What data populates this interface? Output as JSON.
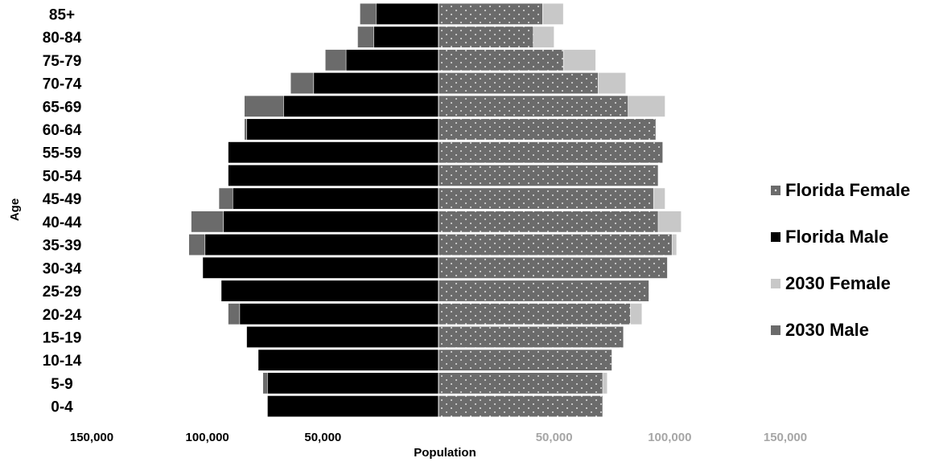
{
  "chart_data": {
    "type": "bar",
    "orientation": "horizontal",
    "xlabel": "Population",
    "ylabel": "Age",
    "xlim": [
      -150000,
      150000
    ],
    "x_ticks": [
      {
        "value": -150000,
        "label": "150,000"
      },
      {
        "value": -100000,
        "label": "100,000"
      },
      {
        "value": -50000,
        "label": "50,000"
      },
      {
        "value": 50000,
        "label": "50,000"
      },
      {
        "value": 100000,
        "label": "100,000"
      },
      {
        "value": 150000,
        "label": "150,000"
      }
    ],
    "grid": false,
    "legend_position": "right",
    "categories": [
      "0-4",
      "5-9",
      "10-14",
      "15-19",
      "20-24",
      "25-29",
      "30-34",
      "35-39",
      "40-44",
      "45-49",
      "50-54",
      "55-59",
      "60-64",
      "65-69",
      "70-74",
      "75-79",
      "80-84",
      "85+"
    ],
    "series": [
      {
        "name": "Florida Female",
        "color": "#6b6b6b",
        "pattern": "dots",
        "values": [
          71000,
          71000,
          75000,
          80000,
          83000,
          91000,
          99000,
          101000,
          95000,
          93000,
          95000,
          97000,
          94000,
          82000,
          69000,
          54000,
          41000,
          45000
        ]
      },
      {
        "name": "Florida Male",
        "color": "#000000",
        "values": [
          74000,
          74000,
          78000,
          83000,
          86000,
          94000,
          102000,
          101000,
          93000,
          89000,
          91000,
          91000,
          83000,
          67000,
          54000,
          40000,
          28000,
          27000
        ]
      },
      {
        "name": "2030 Female",
        "color": "#c8c8c8",
        "values": [
          71000,
          73000,
          75000,
          80000,
          88000,
          91000,
          99000,
          103000,
          105000,
          98000,
          95000,
          97000,
          94000,
          98000,
          81000,
          68000,
          50000,
          54000
        ]
      },
      {
        "name": "2030 Male",
        "color": "#6b6b6b",
        "values": [
          74000,
          76000,
          78000,
          83000,
          91000,
          94000,
          102000,
          108000,
          107000,
          95000,
          91000,
          91000,
          84000,
          84000,
          64000,
          49000,
          35000,
          34000
        ]
      }
    ]
  }
}
